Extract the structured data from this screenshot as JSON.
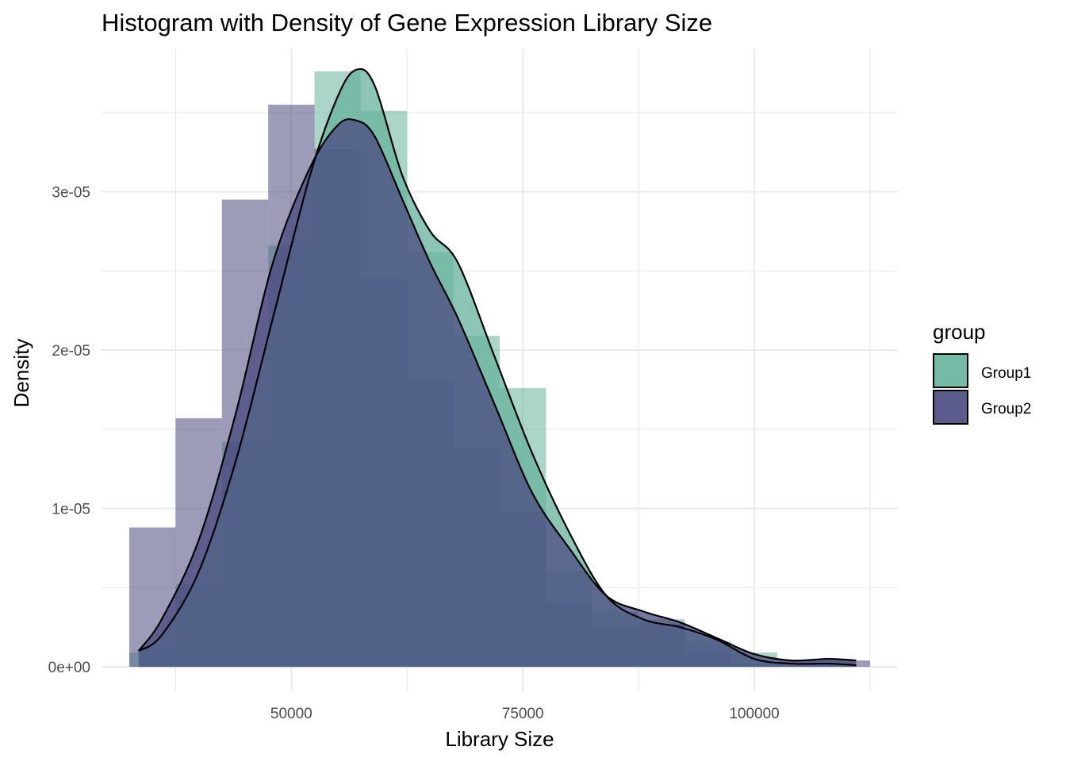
{
  "chart_data": {
    "type": "histogram",
    "title": "Histogram with Density of Gene Expression Library Size",
    "xlabel": "Library Size",
    "ylabel": "Density",
    "xlim": [
      29500,
      115500
    ],
    "ylim": [
      -1.5e-06,
      3.9e-05
    ],
    "x_ticks": [
      50000,
      75000,
      100000
    ],
    "x_tick_labels": [
      "50000",
      "75000",
      "100000"
    ],
    "y_ticks": [
      0,
      1e-05,
      2e-05,
      3e-05
    ],
    "y_tick_labels": [
      "0e+00",
      "1e-05",
      "2e-05",
      "3e-05"
    ],
    "grid": true,
    "legend": {
      "title": "group",
      "position": "right"
    },
    "bin_edges": [
      32500,
      37500,
      42500,
      47500,
      52500,
      57500,
      62500,
      67500,
      72500,
      77500,
      82500,
      87500,
      92500,
      97500,
      102500,
      107500,
      112500
    ],
    "series": [
      {
        "name": "Group1",
        "color": "#66b29c",
        "fill_opacity": 0.55,
        "histogram": [
          9e-07,
          5.2e-06,
          1.42e-05,
          2.66e-05,
          3.76e-05,
          3.51e-05,
          2.62e-05,
          2.09e-05,
          1.76e-05,
          6e-06,
          3.5e-06,
          3e-06,
          1.6e-06,
          9e-07,
          0.0,
          0.0
        ],
        "density": {
          "x": [
            33500,
            36000,
            40000,
            44000,
            48000,
            52000,
            55000,
            57000,
            59000,
            62000,
            65000,
            68000,
            72000,
            76000,
            80000,
            84000,
            88000,
            92000,
            96000,
            100000,
            104000,
            108000,
            111000
          ],
          "y": [
            1e-06,
            2e-06,
            6e-06,
            1.3e-05,
            2.2e-05,
            3.1e-05,
            3.6e-05,
            3.77e-05,
            3.67e-05,
            3.1e-05,
            2.75e-05,
            2.55e-05,
            1.95e-05,
            1.35e-05,
            8.5e-06,
            4.5e-06,
            3e-06,
            2.5e-06,
            1.7e-06,
            5e-07,
            2e-07,
            2e-07,
            1e-07
          ]
        }
      },
      {
        "name": "Group2",
        "color": "#4a4a80",
        "fill_opacity": 0.55,
        "histogram": [
          8.8e-06,
          1.57e-05,
          2.95e-05,
          3.55e-05,
          3.27e-05,
          2.45e-05,
          1.8e-05,
          1.38e-05,
          9.8e-06,
          4.1e-06,
          2.4e-06,
          2.7e-06,
          9e-07,
          2e-07,
          4e-07,
          4e-07
        ],
        "density": {
          "x": [
            33500,
            36000,
            40000,
            44000,
            48000,
            52000,
            55000,
            57000,
            59000,
            62000,
            65000,
            68000,
            72000,
            76000,
            80000,
            84000,
            88000,
            92000,
            96000,
            100000,
            104000,
            108000,
            111000
          ],
          "y": [
            1e-06,
            3e-06,
            8e-06,
            1.6e-05,
            2.55e-05,
            3.15e-05,
            3.42e-05,
            3.45e-05,
            3.35e-05,
            2.95e-05,
            2.55e-05,
            2.2e-05,
            1.65e-05,
            1.1e-05,
            7.5e-06,
            4.5e-06,
            3.5e-06,
            2.8e-06,
            1.8e-06,
            8e-07,
            4e-07,
            5e-07,
            4e-07
          ]
        }
      }
    ]
  }
}
